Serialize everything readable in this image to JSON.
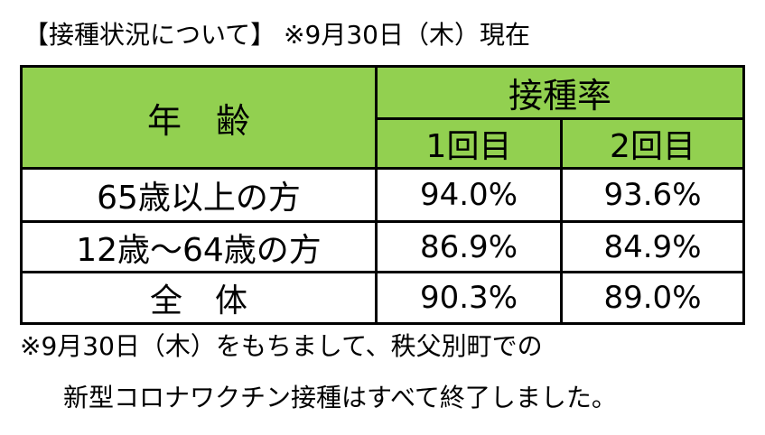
{
  "header": {
    "title": "【接種状況について】 ※9月30日（木）現在"
  },
  "table": {
    "age_header": "年　齢",
    "rate_header": "接種率",
    "dose_headers": [
      "1回目",
      "2回目"
    ],
    "rows": [
      [
        "65歳以上の方",
        "94.0%",
        "93.6%"
      ],
      [
        "12歳～64歳の方",
        "86.9%",
        "84.9%"
      ],
      [
        "全　体",
        "90.3%",
        "89.0%"
      ]
    ]
  },
  "footer": {
    "lines": [
      "※9月30日（木）をもちまして、秩父別町での",
      "新型コロナワクチン接種はすべて終了しました。"
    ]
  }
}
